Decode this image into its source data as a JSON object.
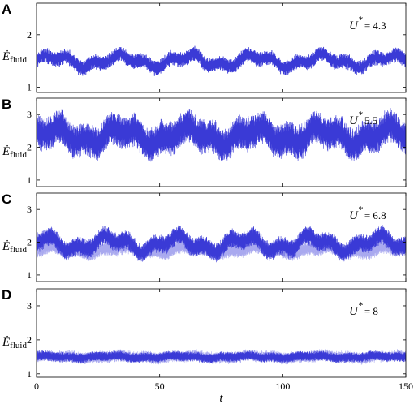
{
  "chart_data": [
    {
      "type": "line",
      "panel": "A",
      "annotation": {
        "label": "U",
        "sup": "*",
        "value": "= 4.3"
      },
      "ylabel": {
        "main": "Ė",
        "sub": "fluid"
      },
      "xlim": [
        0,
        150
      ],
      "ylim": [
        0.9,
        2.6
      ],
      "yticks": [
        1,
        2
      ],
      "xticks": [],
      "series": [
        {
          "color": "#3a3ad6",
          "mean": 1.5,
          "band": 0.14,
          "slow_amp": 0.09,
          "dense": false
        }
      ]
    },
    {
      "type": "line",
      "panel": "B",
      "annotation": {
        "label": "U",
        "sup": "*",
        "value": "5.5"
      },
      "ylabel": {
        "main": "Ė",
        "sub": "fluid"
      },
      "xlim": [
        0,
        150
      ],
      "ylim": [
        0.8,
        3.5
      ],
      "yticks": [
        1,
        2,
        3
      ],
      "xticks": [],
      "series": [
        {
          "color": "#3a3ad6",
          "mean": 2.35,
          "band": 0.5,
          "slow_amp": 0.2,
          "dense": true
        }
      ]
    },
    {
      "type": "line",
      "panel": "C",
      "annotation": {
        "label": "U",
        "sup": "*",
        "value": "= 6.8"
      },
      "ylabel": {
        "main": "Ė",
        "sub": "fluid"
      },
      "xlim": [
        0,
        150
      ],
      "ylim": [
        0.8,
        3.5
      ],
      "yticks": [
        1,
        2,
        3
      ],
      "xticks": [],
      "series": [
        {
          "color": "#a9a9ef",
          "mean": 1.75,
          "band": 0.2,
          "slow_amp": 0.08,
          "dense": true
        },
        {
          "color": "#3a3ad6",
          "mean": 1.95,
          "band": 0.28,
          "slow_amp": 0.18,
          "dense": true
        }
      ]
    },
    {
      "type": "line",
      "panel": "D",
      "annotation": {
        "label": "U",
        "sup": "*",
        "value": "= 8"
      },
      "ylabel": {
        "main": "Ė",
        "sub": "fluid"
      },
      "xlim": [
        0,
        150
      ],
      "ylim": [
        0.9,
        3.5
      ],
      "yticks": [
        1,
        2,
        3
      ],
      "xticks": [
        0,
        50,
        100,
        150
      ],
      "xlabel": "t",
      "series": [
        {
          "color": "#a9a9ef",
          "mean": 1.5,
          "band": 0.17,
          "slow_amp": 0.03,
          "dense": true
        },
        {
          "color": "#3a3ad6",
          "mean": 1.5,
          "band": 0.14,
          "slow_amp": 0.03,
          "dense": true
        }
      ]
    }
  ]
}
